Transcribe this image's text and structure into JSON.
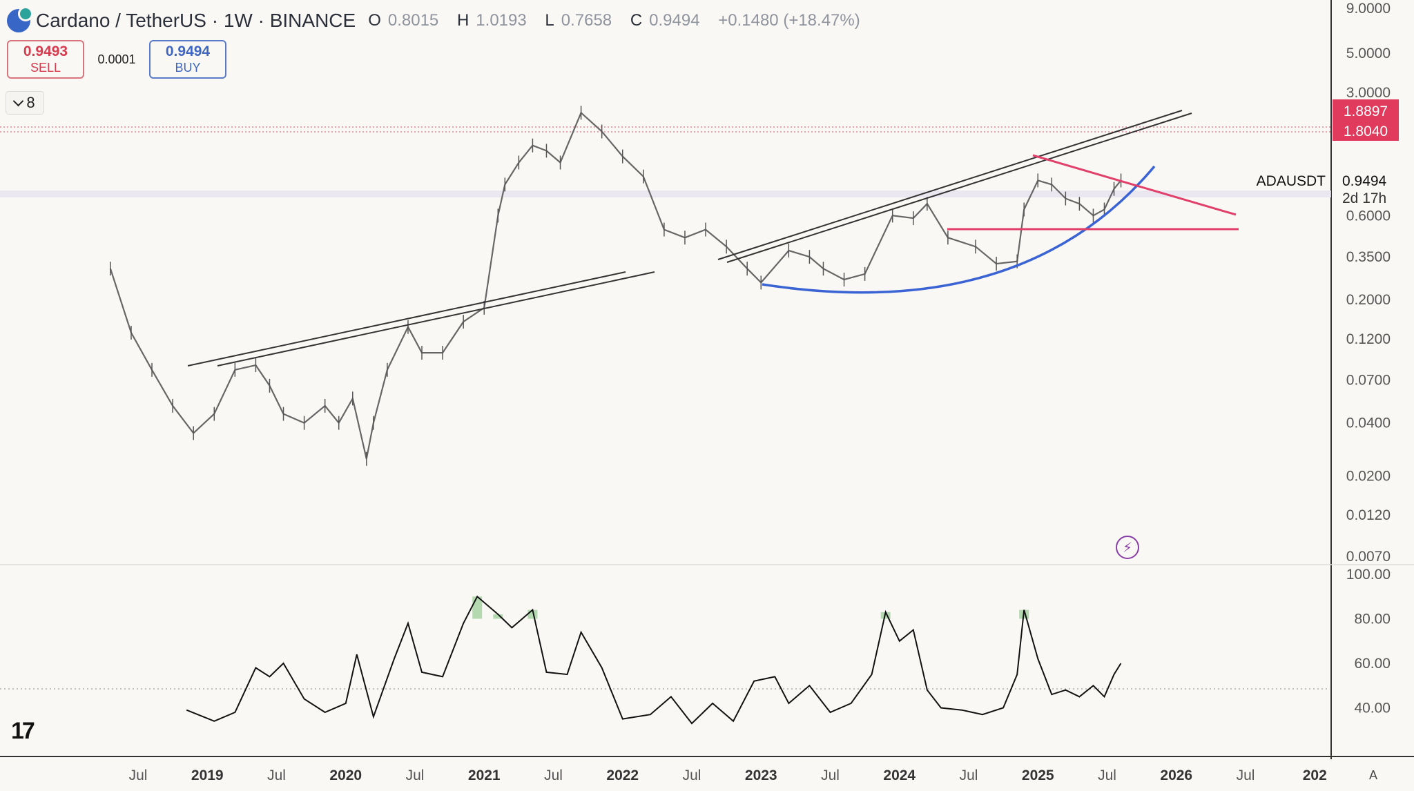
{
  "header": {
    "title": "Cardano / TetherUS · 1W · BINANCE",
    "ohlc": {
      "o_label": "O",
      "o": "0.8015",
      "h_label": "H",
      "h": "1.0193",
      "l_label": "L",
      "l": "0.7658",
      "c_label": "C",
      "c": "0.9494",
      "change": "+0.1480 (+18.47%)"
    }
  },
  "trade": {
    "sell_price": "0.9493",
    "sell_label": "SELL",
    "spread": "0.0001",
    "buy_price": "0.9494",
    "buy_label": "BUY"
  },
  "indicators_toggle": {
    "count": "8"
  },
  "colors": {
    "sell": "#d63b4e",
    "buy": "#3f67c2",
    "up_line": "#e0406a",
    "curve": "#3a63d4",
    "trend": "#333333",
    "rsi_fill": "#7cc07a"
  },
  "chart_data": [
    {
      "type": "line",
      "symbol_label": "ADAUSDT",
      "last_price": "0.9494",
      "countdown": "2d 17h",
      "alert_levels": [
        "1.8897",
        "1.8040"
      ],
      "y_scale": "log",
      "ylim": [
        0.007,
        9.0
      ],
      "y_ticks": [
        "9.0000",
        "5.0000",
        "3.0000",
        "0.6000",
        "0.3500",
        "0.2000",
        "0.1200",
        "0.0700",
        "0.0400",
        "0.0200",
        "0.0120",
        "0.0070"
      ],
      "x_ticks": [
        "Jul",
        "2019",
        "Jul",
        "2020",
        "Jul",
        "2021",
        "Jul",
        "2022",
        "Jul",
        "2023",
        "Jul",
        "2024",
        "Jul",
        "2025",
        "Jul",
        "2026",
        "Jul",
        "202"
      ],
      "x_tick_years": [
        false,
        true,
        false,
        true,
        false,
        true,
        false,
        true,
        false,
        true,
        false,
        true,
        false,
        true,
        false,
        true,
        false,
        true
      ],
      "x": [
        2018.3,
        2018.45,
        2018.6,
        2018.75,
        2018.9,
        2019.05,
        2019.2,
        2019.35,
        2019.45,
        2019.55,
        2019.7,
        2019.85,
        2019.95,
        2020.05,
        2020.15,
        2020.2,
        2020.3,
        2020.45,
        2020.55,
        2020.7,
        2020.85,
        2021.0,
        2021.1,
        2021.15,
        2021.25,
        2021.35,
        2021.45,
        2021.55,
        2021.7,
        2021.85,
        2022.0,
        2022.15,
        2022.3,
        2022.45,
        2022.6,
        2022.75,
        2022.9,
        2023.0,
        2023.2,
        2023.35,
        2023.45,
        2023.6,
        2023.75,
        2023.95,
        2024.1,
        2024.2,
        2024.35,
        2024.55,
        2024.7,
        2024.85,
        2024.9,
        2025.0,
        2025.1,
        2025.2,
        2025.3,
        2025.4,
        2025.48,
        2025.55,
        2025.6
      ],
      "series": [
        {
          "values": [
            0.3,
            0.13,
            0.08,
            0.05,
            0.035,
            0.045,
            0.08,
            0.085,
            0.065,
            0.045,
            0.04,
            0.05,
            0.04,
            0.055,
            0.025,
            0.04,
            0.08,
            0.14,
            0.1,
            0.1,
            0.15,
            0.18,
            0.6,
            0.9,
            1.2,
            1.5,
            1.4,
            1.2,
            2.3,
            1.8,
            1.3,
            1.0,
            0.5,
            0.45,
            0.5,
            0.4,
            0.3,
            0.25,
            0.38,
            0.35,
            0.3,
            0.26,
            0.28,
            0.6,
            0.58,
            0.7,
            0.45,
            0.4,
            0.32,
            0.33,
            0.65,
            0.95,
            0.9,
            0.75,
            0.7,
            0.6,
            0.65,
            0.85,
            0.9494
          ]
        }
      ]
    },
    {
      "type": "line",
      "ylim": [
        20,
        100
      ],
      "y_ticks": [
        "100.00",
        "80.00",
        "60.00",
        "40.00"
      ],
      "x": [
        2018.85,
        2019.05,
        2019.2,
        2019.35,
        2019.45,
        2019.55,
        2019.7,
        2019.85,
        2020.0,
        2020.08,
        2020.2,
        2020.35,
        2020.45,
        2020.55,
        2020.7,
        2020.85,
        2020.95,
        2021.1,
        2021.2,
        2021.35,
        2021.45,
        2021.6,
        2021.7,
        2021.85,
        2022.0,
        2022.2,
        2022.35,
        2022.5,
        2022.65,
        2022.8,
        2022.95,
        2023.1,
        2023.2,
        2023.35,
        2023.5,
        2023.65,
        2023.8,
        2023.9,
        2024.0,
        2024.1,
        2024.2,
        2024.3,
        2024.45,
        2024.6,
        2024.75,
        2024.85,
        2024.9,
        2025.0,
        2025.1,
        2025.2,
        2025.3,
        2025.4,
        2025.48,
        2025.55,
        2025.6
      ],
      "series": [
        {
          "name": "RSI",
          "values": [
            39,
            34,
            38,
            58,
            54,
            60,
            44,
            38,
            42,
            64,
            36,
            62,
            78,
            56,
            54,
            78,
            90,
            82,
            76,
            84,
            56,
            55,
            74,
            58,
            35,
            37,
            45,
            33,
            42,
            34,
            52,
            54,
            42,
            50,
            38,
            42,
            55,
            83,
            70,
            75,
            48,
            40,
            39,
            37,
            40,
            55,
            84,
            62,
            46,
            48,
            45,
            50,
            45,
            55,
            60
          ]
        }
      ]
    }
  ]
}
